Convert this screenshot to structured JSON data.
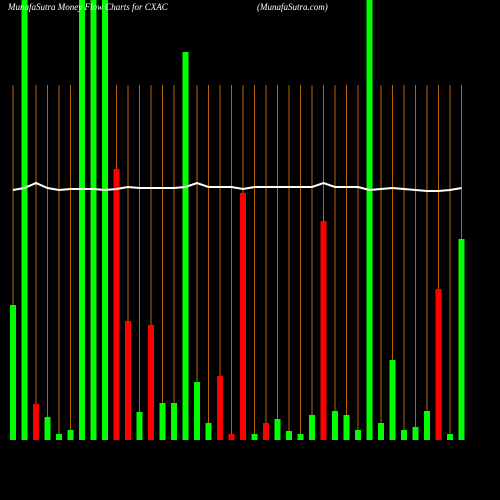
{
  "chart_data": {
    "type": "bar",
    "title": "MunafaSutra  Money Flow  Charts for CXAC",
    "subtitle": "(MunafaSutra.com)",
    "values": [
      135,
      440,
      36,
      23,
      6,
      10,
      440,
      440,
      440,
      271,
      119,
      28,
      115,
      37,
      37,
      388,
      58,
      17,
      64,
      6,
      247,
      6,
      17,
      21,
      9,
      6,
      25,
      219,
      29,
      25,
      10,
      440,
      17,
      80,
      10,
      13,
      29,
      151,
      6,
      201
    ],
    "colors": [
      "#00ff00",
      "#00ff00",
      "#ff0000",
      "#00ff00",
      "#00ff00",
      "#00ff00",
      "#00ff00",
      "#00ff00",
      "#00ff00",
      "#ff0000",
      "#ff0000",
      "#00ff00",
      "#ff0000",
      "#00ff00",
      "#00ff00",
      "#00ff00",
      "#00ff00",
      "#00ff00",
      "#ff0000",
      "#ff0000",
      "#ff0000",
      "#00ff00",
      "#ff0000",
      "#00ff00",
      "#00ff00",
      "#00ff00",
      "#00ff00",
      "#ff0000",
      "#00ff00",
      "#00ff00",
      "#00ff00",
      "#00ff00",
      "#00ff00",
      "#00ff00",
      "#00ff00",
      "#00ff00",
      "#00ff00",
      "#ff0000",
      "#00ff00",
      "#00ff00"
    ],
    "average": [
      250,
      252,
      257,
      252,
      250,
      251,
      251,
      251,
      250,
      251,
      253,
      252,
      252,
      252,
      252,
      253,
      257,
      253,
      253,
      253,
      251,
      253,
      253,
      253,
      253,
      253,
      253,
      257,
      253,
      253,
      253,
      250,
      251,
      252,
      251,
      250,
      249,
      249,
      250,
      252
    ],
    "average_color": "#ffffff",
    "divider_color": "#b8620a",
    "ylim": [
      0,
      440
    ]
  }
}
